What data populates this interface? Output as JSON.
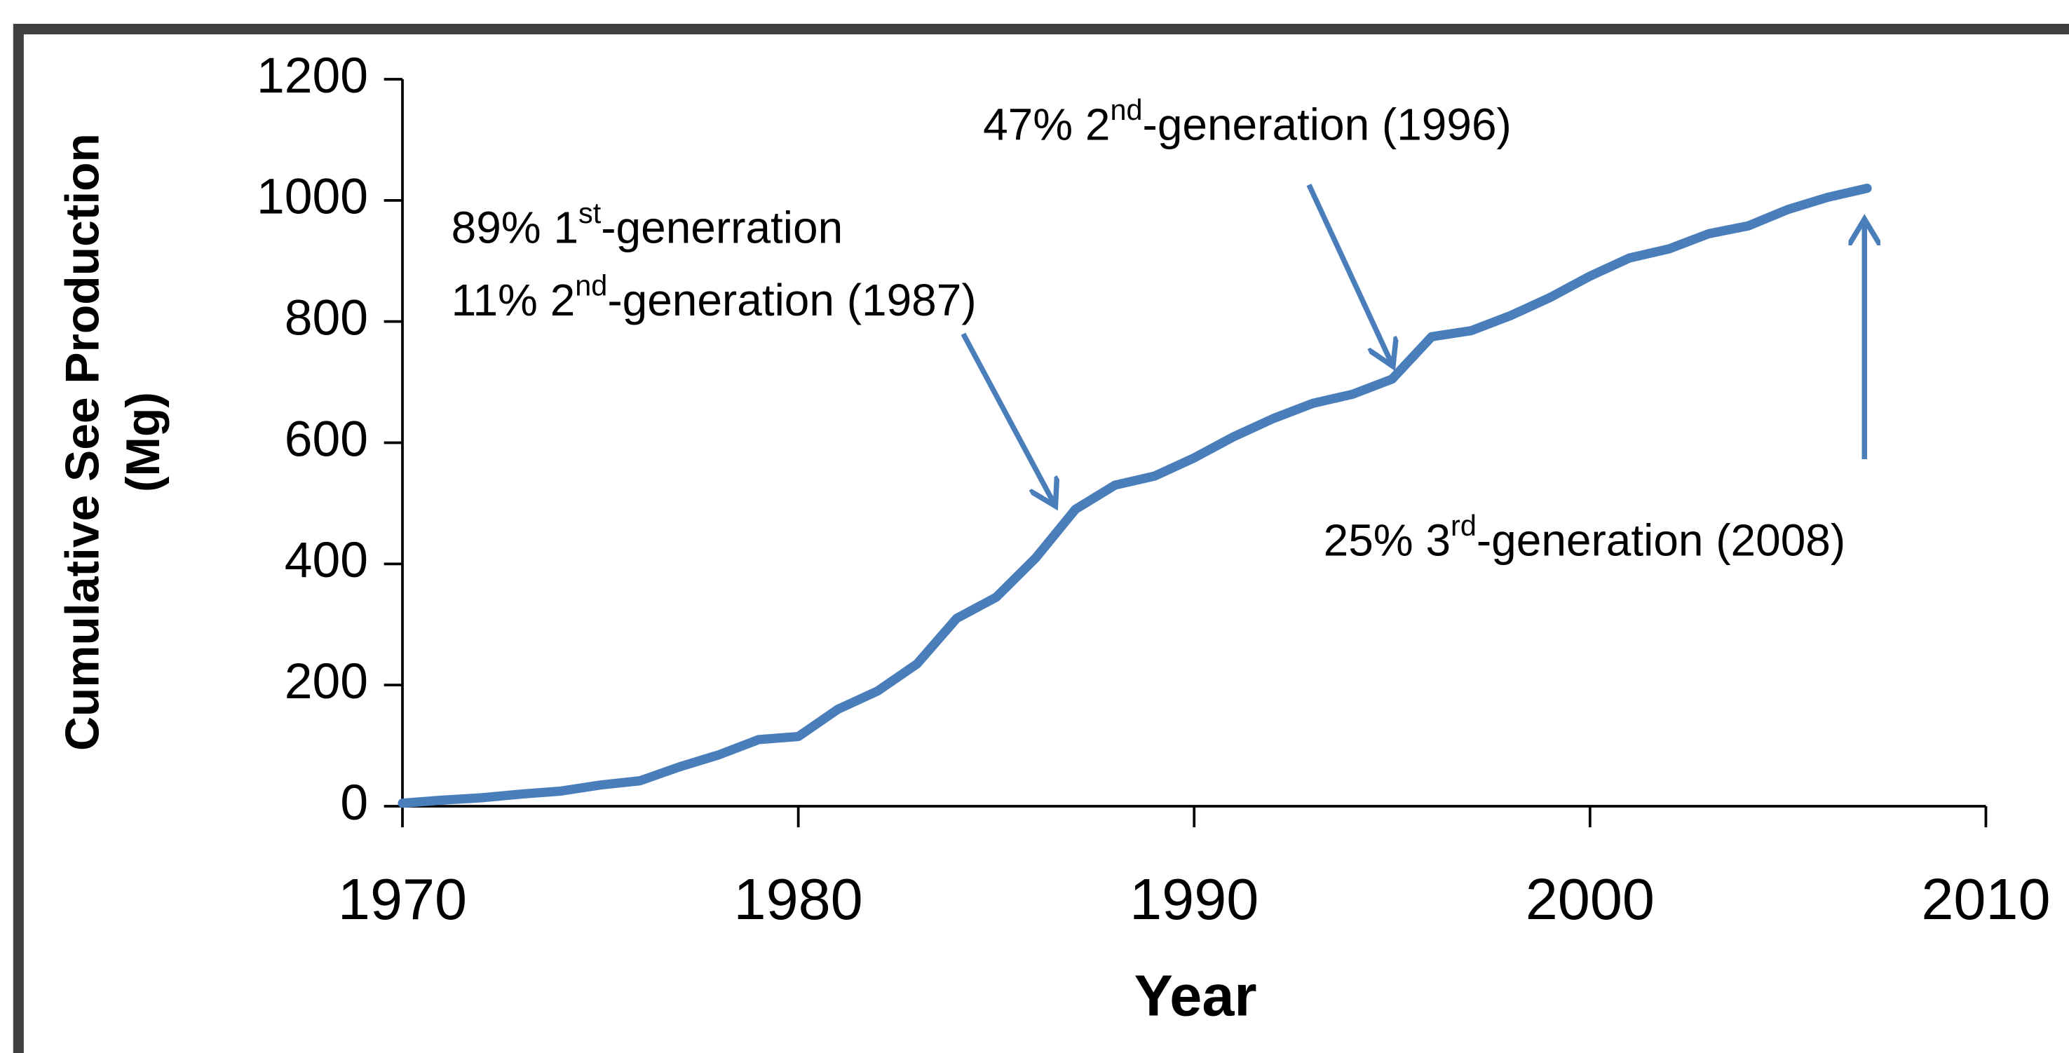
{
  "chart_data": {
    "type": "line",
    "x_label": "Year",
    "y_label": [
      "Cumulative See Production",
      "(Mg)"
    ],
    "x": [
      1970,
      1971,
      1972,
      1973,
      1974,
      1975,
      1976,
      1977,
      1978,
      1979,
      1980,
      1981,
      1982,
      1983,
      1984,
      1985,
      1986,
      1987,
      1988,
      1989,
      1990,
      1991,
      1992,
      1993,
      1994,
      1995,
      1996,
      1997,
      1998,
      1999,
      2000,
      2001,
      2002,
      2003,
      2004,
      2005,
      2006,
      2007
    ],
    "series": [
      {
        "color": "#4a7ebb",
        "values": [
          5,
          10,
          14,
          20,
          25,
          35,
          42,
          65,
          85,
          110,
          115,
          160,
          190,
          235,
          310,
          345,
          410,
          490,
          530,
          545,
          575,
          610,
          640,
          665,
          680,
          705,
          775,
          785,
          810,
          840,
          875,
          905,
          920,
          945,
          958,
          985,
          1005,
          1020
        ]
      }
    ],
    "xlim": [
      1970,
      2010
    ],
    "xticks": [
      1970,
      1980,
      1990,
      2000,
      2010
    ],
    "ylim": [
      0,
      1200
    ],
    "yticks": [
      0,
      200,
      400,
      600,
      800,
      1000,
      1200
    ],
    "annotations": [
      {
        "lines": [
          [
            "89% 1",
            "st",
            "-generration"
          ],
          [
            "11% 2",
            "nd",
            "-generation (1987)"
          ]
        ]
      },
      {
        "lines": [
          [
            "47% 2",
            "nd",
            "-generation (1996)"
          ]
        ]
      },
      {
        "lines": [
          [
            "25% 3",
            "rd",
            "-generation (2008)"
          ]
        ]
      }
    ]
  }
}
